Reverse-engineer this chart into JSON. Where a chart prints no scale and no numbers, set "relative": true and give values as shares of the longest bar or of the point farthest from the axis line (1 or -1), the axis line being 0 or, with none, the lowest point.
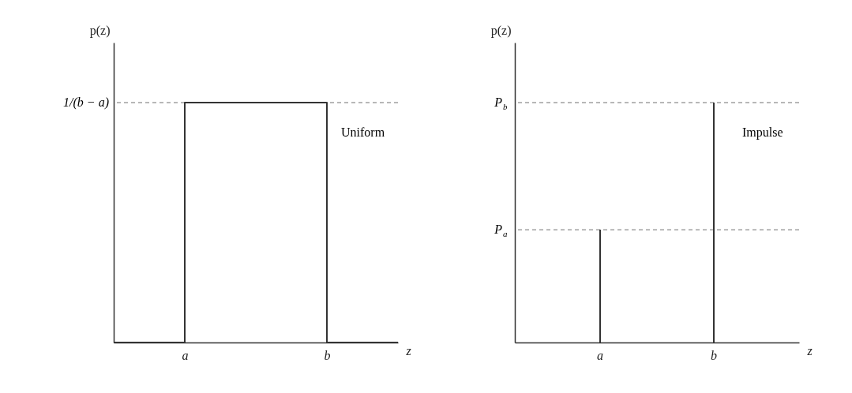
{
  "chart_data": [
    {
      "type": "step",
      "relative": true,
      "xlabel": "z",
      "ylabel": "p(z)",
      "categories": [
        null,
        "a",
        null,
        "b",
        null
      ],
      "values": [
        0,
        1,
        1,
        0,
        0
      ],
      "color": "#333333",
      "ref_lines": [
        {
          "axis": "y",
          "value": 1,
          "label": "1/(b − a)",
          "line_style": "dashed"
        }
      ],
      "annotations": [
        "Uniform"
      ]
    },
    {
      "type": "bar",
      "relative": true,
      "xlabel": "z",
      "ylabel": "p(z)",
      "categories": [
        null,
        "a",
        null,
        "b",
        null
      ],
      "values": [
        null,
        0.47,
        null,
        1,
        null
      ],
      "color": "#333333",
      "ref_lines": [
        {
          "axis": "y",
          "value": 0.47,
          "label": "P$_{a}$",
          "line_style": "dashed"
        },
        {
          "axis": "y",
          "value": 1,
          "label": "P$_{b}$",
          "line_style": "dashed"
        }
      ],
      "annotations": [
        "Impulse"
      ]
    }
  ]
}
